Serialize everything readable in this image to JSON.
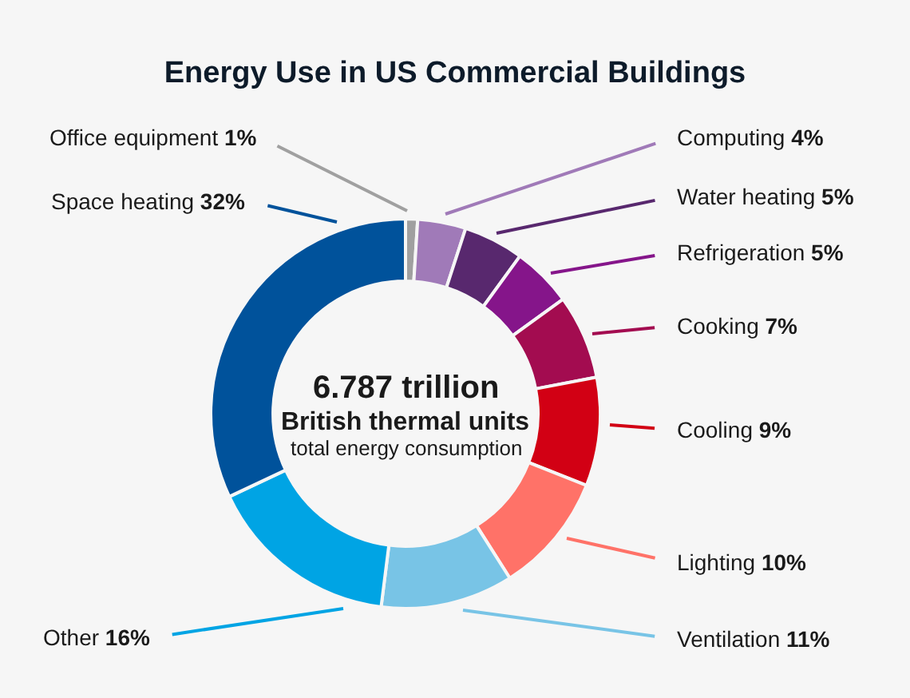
{
  "chart_data": {
    "type": "donut",
    "title": "Energy Use in US Commercial Buildings",
    "categories": [
      "Office equipment",
      "Computing",
      "Water heating",
      "Refrigeration",
      "Cooking",
      "Cooling",
      "Lighting",
      "Ventilation",
      "Other",
      "Space heating"
    ],
    "values": [
      1,
      4,
      5,
      5,
      7,
      9,
      10,
      11,
      16,
      32
    ],
    "value_labels": [
      "1%",
      "4%",
      "5%",
      "5%",
      "7%",
      "9%",
      "10%",
      "11%",
      "16%",
      "32%"
    ],
    "colors": [
      "#a0a0a0",
      "#a07ab8",
      "#58286e",
      "#85158a",
      "#a30c50",
      "#d20014",
      "#ff7268",
      "#78c4e6",
      "#00a4e4",
      "#00529b"
    ],
    "annotations": [
      "6.787 trillion",
      "British thermal units",
      "total energy consumption"
    ]
  }
}
